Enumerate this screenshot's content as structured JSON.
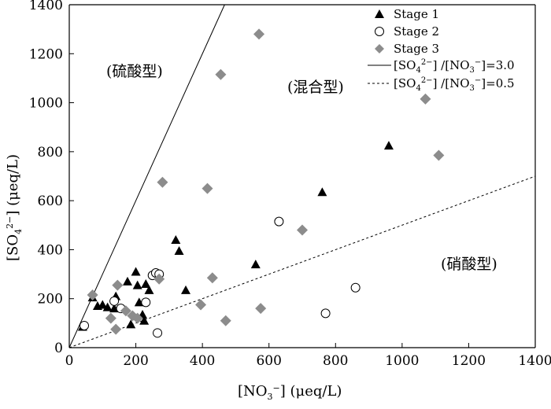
{
  "chart_data": {
    "type": "scatter",
    "title": "",
    "xlabel": "[NO3-] (μeq/L)",
    "ylabel": "[SO42-] (μeq/L)",
    "xlim": [
      0,
      1400
    ],
    "ylim": [
      0,
      1400
    ],
    "xticks": [
      0,
      200,
      400,
      600,
      800,
      1000,
      1200,
      1400
    ],
    "yticks": [
      0,
      200,
      400,
      600,
      800,
      1000,
      1200,
      1400
    ],
    "grid": false,
    "legend_position": "top-right",
    "regions": {
      "sulfate": "(硫酸型)",
      "mixed": "(混合型)",
      "nitrate": "(硝酸型)"
    },
    "series": [
      {
        "name": "Stage 1",
        "marker": "filled-triangle",
        "color": "#000000",
        "points": [
          [
            40,
            85
          ],
          [
            70,
            205
          ],
          [
            85,
            170
          ],
          [
            100,
            175
          ],
          [
            115,
            165
          ],
          [
            135,
            160
          ],
          [
            140,
            210
          ],
          [
            175,
            270
          ],
          [
            185,
            95
          ],
          [
            200,
            310
          ],
          [
            205,
            255
          ],
          [
            210,
            185
          ],
          [
            220,
            135
          ],
          [
            225,
            110
          ],
          [
            230,
            260
          ],
          [
            240,
            235
          ],
          [
            320,
            440
          ],
          [
            330,
            395
          ],
          [
            350,
            235
          ],
          [
            560,
            340
          ],
          [
            760,
            635
          ],
          [
            960,
            825
          ]
        ]
      },
      {
        "name": "Stage 2",
        "marker": "open-circle",
        "color": "#000000",
        "points": [
          [
            45,
            90
          ],
          [
            135,
            190
          ],
          [
            155,
            160
          ],
          [
            230,
            185
          ],
          [
            250,
            295
          ],
          [
            260,
            305
          ],
          [
            270,
            300
          ],
          [
            265,
            60
          ],
          [
            630,
            515
          ],
          [
            770,
            140
          ],
          [
            860,
            245
          ]
        ]
      },
      {
        "name": "Stage 3",
        "marker": "gray-diamond",
        "color": "#8c8c8c",
        "points": [
          [
            70,
            215
          ],
          [
            125,
            120
          ],
          [
            140,
            75
          ],
          [
            145,
            255
          ],
          [
            170,
            150
          ],
          [
            190,
            130
          ],
          [
            205,
            120
          ],
          [
            270,
            280
          ],
          [
            280,
            675
          ],
          [
            395,
            175
          ],
          [
            415,
            650
          ],
          [
            430,
            285
          ],
          [
            455,
            1115
          ],
          [
            470,
            110
          ],
          [
            575,
            160
          ],
          [
            570,
            1280
          ],
          [
            700,
            480
          ],
          [
            1070,
            1015
          ],
          [
            1110,
            785
          ]
        ]
      }
    ],
    "reference_lines": [
      {
        "label": "[SO42-] /[NO3-]=3.0",
        "slope": 3.0,
        "style": "solid"
      },
      {
        "label": "[SO42-] /[NO3-]=0.5",
        "slope": 0.5,
        "style": "dashed"
      }
    ]
  }
}
